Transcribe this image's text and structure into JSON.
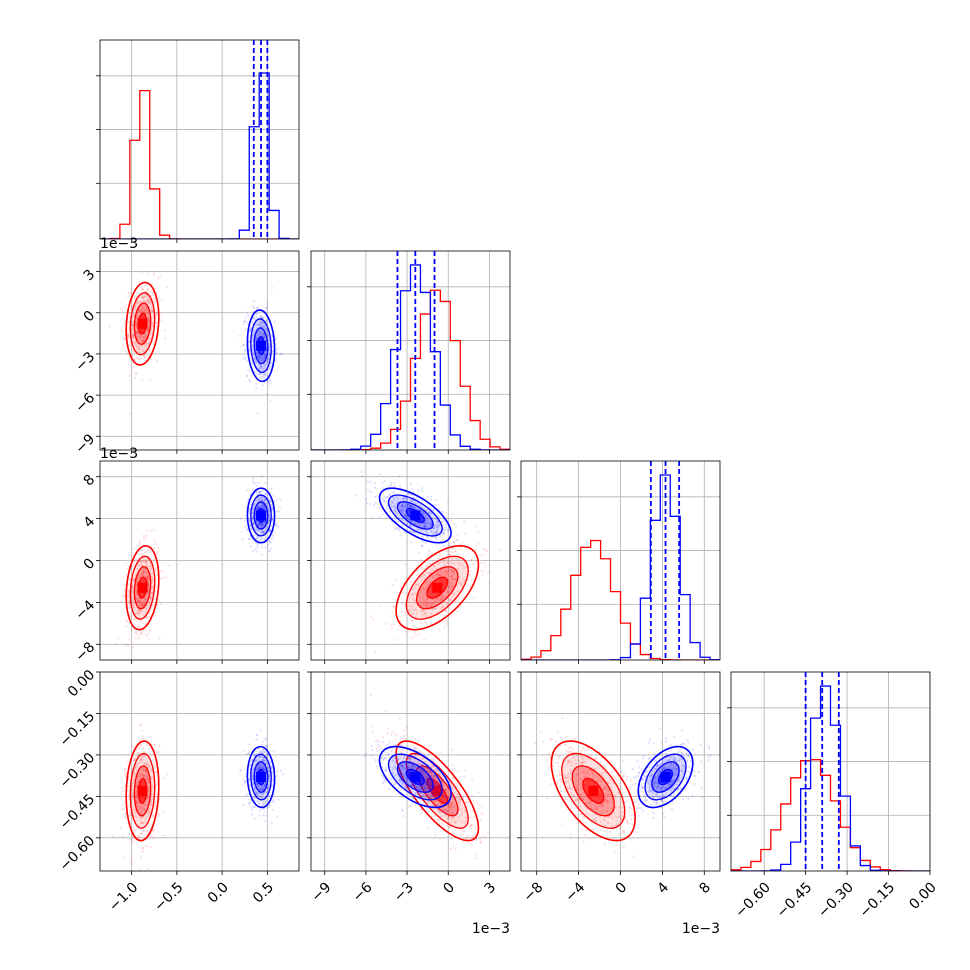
{
  "colors": {
    "series_a": "#ff0000",
    "series_b": "#0000ff",
    "grid": "#b0b0b0",
    "frame": "#000000"
  },
  "chart_data": {
    "type": "corner",
    "dimensions": [
      {
        "id": "p0",
        "lim": [
          -1.35,
          0.85
        ],
        "ticks": [
          -1.0,
          -0.5,
          0.0,
          0.5
        ],
        "tick_labels": [
          "−1.0",
          "−0.5",
          "0.0",
          "0.5"
        ],
        "multiplier": ""
      },
      {
        "id": "p1",
        "lim": [
          -10.0,
          4.5
        ],
        "ticks": [
          -9,
          -6,
          -3,
          0,
          3
        ],
        "tick_labels": [
          "−9",
          "−6",
          "−3",
          "0",
          "3"
        ],
        "multiplier": "1e−3"
      },
      {
        "id": "p2",
        "lim": [
          -9.5,
          9.5
        ],
        "ticks": [
          -8,
          -4,
          0,
          4,
          8
        ],
        "tick_labels": [
          "−8",
          "−4",
          "0",
          "4",
          "8"
        ],
        "multiplier": "1e−3"
      },
      {
        "id": "p3",
        "lim": [
          -0.72,
          0.0
        ],
        "ticks": [
          -0.6,
          -0.45,
          -0.3,
          -0.15,
          0.0
        ],
        "tick_labels": [
          "−0.60",
          "−0.45",
          "−0.30",
          "−0.15",
          "0.00"
        ],
        "multiplier": ""
      }
    ],
    "series": [
      {
        "color": "red",
        "mean": [
          -0.88,
          -0.8,
          -2.6,
          -0.43
        ],
        "sd": [
          0.09,
          1.5,
          2.0,
          0.09
        ],
        "corr": [
          [
            0,
            1,
            0.15
          ],
          [
            0,
            2,
            0.2
          ],
          [
            0,
            3,
            0.1
          ],
          [
            1,
            2,
            0.55
          ],
          [
            1,
            3,
            -0.75
          ],
          [
            2,
            3,
            -0.55
          ]
        ],
        "quantile_lines": []
      },
      {
        "color": "blue",
        "mean": [
          0.43,
          -2.4,
          4.3,
          -0.38
        ],
        "sd": [
          0.075,
          1.3,
          1.3,
          0.055
        ],
        "corr": [
          [
            0,
            1,
            -0.1
          ],
          [
            0,
            2,
            0.0
          ],
          [
            0,
            3,
            -0.05
          ],
          [
            1,
            2,
            -0.65
          ],
          [
            1,
            3,
            -0.55
          ],
          [
            2,
            3,
            0.45
          ]
        ],
        "quantile_lines": [
          [
            0.35,
            0.43,
            0.5
          ],
          [
            -3.7,
            -2.4,
            -1.0
          ],
          [
            2.9,
            4.3,
            5.6
          ],
          [
            -0.45,
            -0.39,
            -0.33
          ]
        ]
      }
    ],
    "grid": true,
    "legend": "none"
  }
}
